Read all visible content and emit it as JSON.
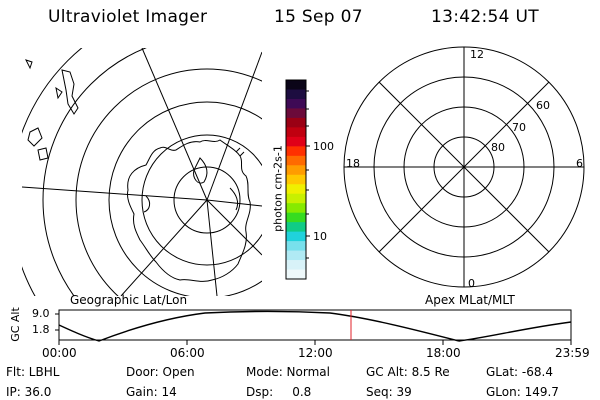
{
  "header": {
    "title": "Ultraviolet Imager",
    "date": "15 Sep 07",
    "time": "13:42:54 UT"
  },
  "left_panel": {
    "caption": "Geographic Lat/Lon"
  },
  "right_panel": {
    "caption": "Apex MLat/MLT",
    "mlt_labels": [
      "12",
      "18",
      "6",
      "0"
    ],
    "mlat_labels": [
      "60",
      "70",
      "80"
    ]
  },
  "colorbar": {
    "unit_label": "photon cm-2s-1",
    "tick_labels": [
      "100",
      "10"
    ],
    "colors": [
      "#0b0518",
      "#1d0d40",
      "#3e0a55",
      "#6b0a3a",
      "#9a0014",
      "#c00010",
      "#e00018",
      "#ff3000",
      "#ff6a00",
      "#ff9c00",
      "#ffc800",
      "#f0f000",
      "#c8f000",
      "#86ea00",
      "#36dc20",
      "#10cc86",
      "#20d2dc",
      "#78e0ec",
      "#b0eaf4",
      "#d8f2f8",
      "#eef8fa"
    ]
  },
  "timeline": {
    "axis_label": "GC Alt",
    "y_ticks": [
      "9.0",
      "1.8"
    ],
    "x_ticks": [
      "00:00",
      "06:00",
      "12:00",
      "18:00",
      "23:59"
    ],
    "marker_color": "#e0202a"
  },
  "footer": {
    "row1": [
      {
        "text": "Flt: LBHL"
      },
      {
        "text": "Door: Open"
      },
      {
        "text": "Mode: Normal"
      },
      {
        "text": "GC Alt: 8.5 Re"
      },
      {
        "text": "GLat: -68.4"
      }
    ],
    "row2": [
      {
        "text": "IP: 36.0"
      },
      {
        "text": "Gain: 14"
      },
      {
        "text": "Dsp:     0.8"
      },
      {
        "text": "Seq: 39"
      },
      {
        "text": "GLon: 149.7"
      }
    ]
  }
}
